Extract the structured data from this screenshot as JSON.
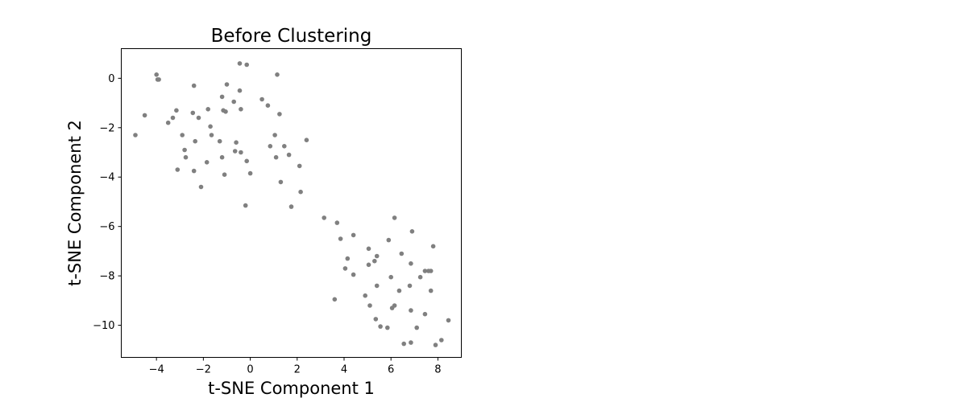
{
  "chart_data": {
    "type": "scatter",
    "title": "Before Clustering",
    "xlabel": "t-SNE Component 1",
    "ylabel": "t-SNE Component 2",
    "xlim": [
      -5.5,
      9.0
    ],
    "ylim": [
      -11.3,
      1.2
    ],
    "xticks": [
      -4,
      -2,
      0,
      2,
      4,
      6,
      8
    ],
    "yticks": [
      0,
      -2,
      -4,
      -6,
      -8,
      -10
    ],
    "xtick_labels": [
      "−4",
      "−2",
      "0",
      "2",
      "4",
      "6",
      "8"
    ],
    "ytick_labels": [
      "0",
      "−2",
      "−4",
      "−6",
      "−8",
      "−10"
    ],
    "grid": false,
    "point_color": "#808080",
    "points": [
      [
        -4.9,
        -2.3
      ],
      [
        -4.5,
        -1.5
      ],
      [
        -4.0,
        0.15
      ],
      [
        -3.95,
        -0.05
      ],
      [
        -3.9,
        -0.05
      ],
      [
        -3.5,
        -1.8
      ],
      [
        -3.3,
        -1.6
      ],
      [
        -3.15,
        -1.3
      ],
      [
        -3.1,
        -3.7
      ],
      [
        -2.9,
        -2.3
      ],
      [
        -2.8,
        -2.9
      ],
      [
        -2.75,
        -3.2
      ],
      [
        -2.45,
        -1.4
      ],
      [
        -2.4,
        -0.3
      ],
      [
        -2.35,
        -2.55
      ],
      [
        -2.4,
        -3.75
      ],
      [
        -2.2,
        -1.6
      ],
      [
        -2.1,
        -4.4
      ],
      [
        -1.85,
        -3.4
      ],
      [
        -1.8,
        -1.25
      ],
      [
        -1.7,
        -1.95
      ],
      [
        -1.65,
        -2.3
      ],
      [
        -1.3,
        -2.55
      ],
      [
        -1.2,
        -0.75
      ],
      [
        -1.15,
        -1.3
      ],
      [
        -1.2,
        -3.2
      ],
      [
        -1.1,
        -3.9
      ],
      [
        -1.05,
        -1.35
      ],
      [
        -1.0,
        -0.25
      ],
      [
        -0.7,
        -0.95
      ],
      [
        -0.65,
        -2.95
      ],
      [
        -0.6,
        -2.6
      ],
      [
        -0.45,
        0.6
      ],
      [
        -0.45,
        -0.5
      ],
      [
        -0.4,
        -1.25
      ],
      [
        -0.4,
        -3.0
      ],
      [
        -0.2,
        -5.15
      ],
      [
        -0.15,
        0.55
      ],
      [
        -0.15,
        -3.35
      ],
      [
        0.0,
        -3.85
      ],
      [
        0.5,
        -0.85
      ],
      [
        0.75,
        -1.1
      ],
      [
        0.85,
        -2.75
      ],
      [
        1.05,
        -2.3
      ],
      [
        1.1,
        -3.2
      ],
      [
        1.15,
        0.15
      ],
      [
        1.25,
        -1.45
      ],
      [
        1.3,
        -4.2
      ],
      [
        1.45,
        -2.75
      ],
      [
        1.65,
        -3.1
      ],
      [
        1.75,
        -5.2
      ],
      [
        2.1,
        -3.55
      ],
      [
        2.15,
        -4.6
      ],
      [
        2.4,
        -2.5
      ],
      [
        3.15,
        -5.65
      ],
      [
        3.6,
        -8.95
      ],
      [
        3.7,
        -5.85
      ],
      [
        3.85,
        -6.5
      ],
      [
        4.05,
        -7.7
      ],
      [
        4.15,
        -7.3
      ],
      [
        4.4,
        -7.95
      ],
      [
        4.4,
        -6.35
      ],
      [
        4.9,
        -8.8
      ],
      [
        5.05,
        -6.9
      ],
      [
        5.05,
        -7.55
      ],
      [
        5.1,
        -9.2
      ],
      [
        5.3,
        -7.4
      ],
      [
        5.35,
        -9.75
      ],
      [
        5.4,
        -8.4
      ],
      [
        5.4,
        -7.2
      ],
      [
        5.55,
        -10.05
      ],
      [
        5.85,
        -10.1
      ],
      [
        5.9,
        -6.55
      ],
      [
        6.0,
        -8.05
      ],
      [
        6.05,
        -9.3
      ],
      [
        6.15,
        -9.2
      ],
      [
        6.15,
        -5.65
      ],
      [
        6.35,
        -8.6
      ],
      [
        6.45,
        -7.1
      ],
      [
        6.55,
        -10.75
      ],
      [
        6.8,
        -8.4
      ],
      [
        6.85,
        -7.5
      ],
      [
        6.85,
        -9.4
      ],
      [
        6.85,
        -10.7
      ],
      [
        6.9,
        -6.2
      ],
      [
        7.1,
        -10.1
      ],
      [
        7.25,
        -8.05
      ],
      [
        7.45,
        -7.8
      ],
      [
        7.45,
        -9.55
      ],
      [
        7.6,
        -7.8
      ],
      [
        7.7,
        -8.6
      ],
      [
        7.7,
        -7.8
      ],
      [
        7.8,
        -6.8
      ],
      [
        7.9,
        -10.8
      ],
      [
        8.15,
        -10.6
      ],
      [
        8.45,
        -9.8
      ]
    ]
  }
}
